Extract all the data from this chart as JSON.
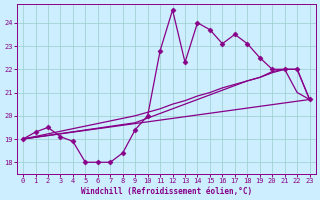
{
  "xlabel": "Windchill (Refroidissement éolien,°C)",
  "bg_color": "#cceeff",
  "line_color": "#880088",
  "marker": "D",
  "markersize": 2.5,
  "linewidth": 0.9,
  "xlim": [
    -0.5,
    23.5
  ],
  "ylim": [
    17.5,
    24.8
  ],
  "xticks": [
    0,
    1,
    2,
    3,
    4,
    5,
    6,
    7,
    8,
    9,
    10,
    11,
    12,
    13,
    14,
    15,
    16,
    17,
    18,
    19,
    20,
    21,
    22,
    23
  ],
  "yticks": [
    18,
    19,
    20,
    21,
    22,
    23,
    24
  ],
  "grid_color": "#99cccc",
  "series1_x": [
    0,
    1,
    2,
    3,
    4,
    5,
    6,
    7,
    8,
    9,
    10,
    11,
    12,
    13,
    14,
    15,
    16,
    17,
    18,
    19,
    20,
    21,
    22,
    23
  ],
  "series1_y": [
    19.0,
    19.3,
    19.5,
    19.1,
    18.9,
    18.0,
    18.0,
    18.0,
    18.4,
    19.4,
    20.0,
    22.8,
    24.55,
    22.3,
    24.0,
    23.7,
    23.1,
    23.5,
    23.1,
    22.5,
    22.0,
    22.0,
    22.0,
    20.7
  ],
  "series2_x": [
    0,
    9,
    10,
    11,
    12,
    13,
    14,
    15,
    16,
    17,
    18,
    19,
    20,
    21,
    22,
    23
  ],
  "series2_y": [
    19.0,
    20.0,
    20.15,
    20.3,
    20.5,
    20.65,
    20.85,
    21.0,
    21.2,
    21.35,
    21.5,
    21.65,
    21.85,
    22.0,
    22.0,
    20.7
  ],
  "series3_x": [
    0,
    9,
    10,
    11,
    12,
    13,
    14,
    15,
    16,
    17,
    18,
    19,
    20,
    21,
    22,
    23
  ],
  "series3_y": [
    19.0,
    19.7,
    19.9,
    20.1,
    20.3,
    20.5,
    20.7,
    20.9,
    21.1,
    21.3,
    21.5,
    21.65,
    21.9,
    22.0,
    21.0,
    20.7
  ],
  "series4_x": [
    0,
    23
  ],
  "series4_y": [
    19.0,
    20.7
  ]
}
